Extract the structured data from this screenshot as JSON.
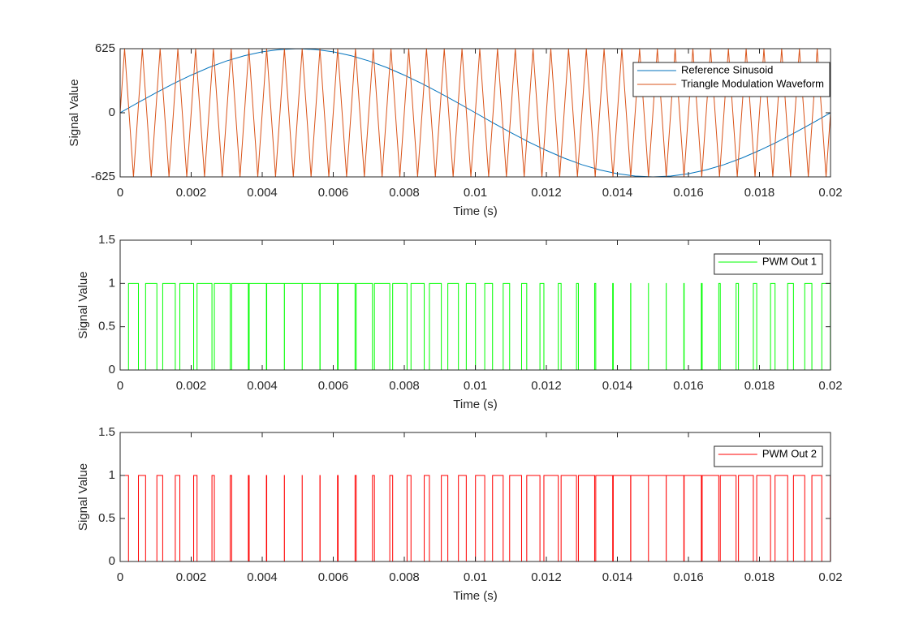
{
  "chart_data": [
    {
      "type": "line",
      "xlabel": "Time (s)",
      "ylabel": "Signal Value",
      "legend": "northeast",
      "grid": false,
      "xlim": [
        0,
        0.02
      ],
      "xticks": [
        0,
        0.002,
        0.004,
        0.006,
        0.008,
        0.01,
        0.012,
        0.014,
        0.016,
        0.018,
        0.02
      ],
      "ylim": [
        -625,
        625
      ],
      "yticks": [
        -625,
        0,
        625
      ],
      "series": [
        {
          "name": "Reference Sinusoid",
          "color": "#0072BD",
          "x": [
            0,
            0.0005,
            0.001,
            0.0015,
            0.002,
            0.0025,
            0.003,
            0.0035,
            0.004,
            0.0045,
            0.005,
            0.0055,
            0.006,
            0.0065,
            0.007,
            0.0075,
            0.008,
            0.0085,
            0.009,
            0.0095,
            0.01,
            0.0105,
            0.011,
            0.0115,
            0.012,
            0.0125,
            0.013,
            0.0135,
            0.014,
            0.0145,
            0.015,
            0.0155,
            0.016,
            0.0165,
            0.017,
            0.0175,
            0.018,
            0.0185,
            0.019,
            0.0195,
            0.02
          ],
          "values": [
            0,
            98,
            193,
            284,
            367,
            442,
            506,
            557,
            594,
            617,
            625,
            617,
            594,
            557,
            506,
            442,
            367,
            284,
            193,
            98,
            0,
            -98,
            -193,
            -284,
            -367,
            -442,
            -506,
            -557,
            -594,
            -617,
            -625,
            -617,
            -594,
            -557,
            -506,
            -442,
            -367,
            -284,
            -193,
            -98,
            0
          ]
        },
        {
          "name": "Triangle Modulation Waveform",
          "color": "#D95319",
          "x": [
            0,
            0.000125,
            0.000375,
            0.000625,
            0.000875,
            0.001125,
            0.001375,
            0.001625,
            0.001875,
            0.002125,
            0.002375,
            0.002625,
            0.002875,
            0.003125,
            0.003375,
            0.003625,
            0.003875,
            0.004125,
            0.004375,
            0.004625,
            0.004875,
            0.005125,
            0.005375,
            0.005625,
            0.005875,
            0.006125,
            0.006375,
            0.006625,
            0.006875,
            0.007125,
            0.007375,
            0.007625,
            0.007875,
            0.008125,
            0.008375,
            0.008625,
            0.008875,
            0.009125,
            0.009375,
            0.009625,
            0.009875,
            0.010125,
            0.010375,
            0.010625,
            0.010875,
            0.011125,
            0.011375,
            0.011625,
            0.011875,
            0.012125,
            0.012375,
            0.012625,
            0.012875,
            0.013125,
            0.013375,
            0.013625,
            0.013875,
            0.014125,
            0.014375,
            0.014625,
            0.014875,
            0.015125,
            0.015375,
            0.015625,
            0.015875,
            0.016125,
            0.016375,
            0.016625,
            0.016875,
            0.017125,
            0.017375,
            0.017625,
            0.017875,
            0.018125,
            0.018375,
            0.018625,
            0.018875,
            0.019125,
            0.019375,
            0.019625,
            0.019875,
            0.02
          ],
          "values": [
            0,
            625,
            -625,
            625,
            -625,
            625,
            -625,
            625,
            -625,
            625,
            -625,
            625,
            -625,
            625,
            -625,
            625,
            -625,
            625,
            -625,
            625,
            -625,
            625,
            -625,
            625,
            -625,
            625,
            -625,
            625,
            -625,
            625,
            -625,
            625,
            -625,
            625,
            -625,
            625,
            -625,
            625,
            -625,
            625,
            -625,
            625,
            -625,
            625,
            -625,
            625,
            -625,
            625,
            -625,
            625,
            -625,
            625,
            -625,
            625,
            -625,
            625,
            -625,
            625,
            -625,
            625,
            -625,
            625,
            -625,
            625,
            -625,
            625,
            -625,
            625,
            -625,
            625,
            -625,
            625,
            -625,
            625,
            -625,
            625,
            -625,
            625,
            -625,
            625,
            -625,
            0
          ]
        }
      ]
    },
    {
      "type": "line",
      "xlabel": "Time (s)",
      "ylabel": "Signal Value",
      "legend": "northeast",
      "grid": false,
      "xlim": [
        0,
        0.02
      ],
      "xticks": [
        0,
        0.002,
        0.004,
        0.006,
        0.008,
        0.01,
        0.012,
        0.014,
        0.016,
        0.018,
        0.02
      ],
      "ylim": [
        0,
        1.5
      ],
      "yticks": [
        0,
        0.5,
        1,
        1.5
      ],
      "series": [
        {
          "name": "PWM Out 1",
          "color": "#00FF00",
          "x": [
            0,
            0.0002353,
            0.0002353,
            0.0005147,
            0.0005147,
            0.0007161,
            0.0007161,
            0.0010339,
            0.0010339,
            0.0011977,
            0.0011977,
            0.0015523,
            0.0015523,
            0.0016806,
            0.0016806,
            0.0020694,
            0.0020694,
            0.0021651,
            0.0021651,
            0.0025849,
            0.0025849,
            0.0026518,
            0.0026518,
            0.0030982,
            0.0030982,
            0.0031409,
            0.0031409,
            0.0036091,
            0.0036091,
            0.0036327,
            0.0036327,
            0.0041173,
            0.0041173,
            0.0041274,
            0.0041274,
            0.0046226,
            0.0046226,
            0.0046251,
            0.0046251,
            0.0051249,
            0.0051249,
            0.0051259,
            0.0051259,
            0.0056241,
            0.0056241,
            0.0056297,
            0.0056297,
            0.0061203,
            0.0061203,
            0.0061365,
            0.0061365,
            0.0066135,
            0.0066135,
            0.0066461,
            0.0066461,
            0.0071039,
            0.0071039,
            0.0071582,
            0.0071582,
            0.0075918,
            0.0075918,
            0.0076726,
            0.0076726,
            0.0080774,
            0.0080774,
            0.0081889,
            0.0081889,
            0.0085611,
            0.0085611,
            0.0087067,
            0.0087067,
            0.0090433,
            0.0090433,
            0.0092256,
            0.0092256,
            0.0095244,
            0.0095244,
            0.0097451,
            0.0097451,
            0.0100049,
            0.0100049,
            0.0102647,
            0.0102647,
            0.0104853,
            0.0104853,
            0.0107839,
            0.0107839,
            0.0109661,
            0.0109661,
            0.0113023,
            0.0113023,
            0.0114477,
            0.0114477,
            0.0118194,
            0.0118194,
            0.0119306,
            0.0119306,
            0.0123348,
            0.0123348,
            0.0124152,
            0.0124152,
            0.0128482,
            0.0128482,
            0.0129018,
            0.0129018,
            0.0133591,
            0.0133591,
            0.0133909,
            0.0133909,
            0.0138673,
            0.0138673,
            0.0138827,
            0.0138827,
            0.0143726,
            0.0143726,
            0.0143774,
            0.0143774,
            0.0148749,
            0.0148749,
            0.0148751,
            0.0148751,
            0.0153741,
            0.0153741,
            0.0153759,
            0.0153759,
            0.0158703,
            0.0158703,
            0.0158797,
            0.0158797,
            0.0163635,
            0.0163635,
            0.0163865,
            0.0163865,
            0.0168539,
            0.0168539,
            0.0168961,
            0.0168961,
            0.0173418,
            0.0173418,
            0.0174082,
            0.0174082,
            0.0178274,
            0.0178274,
            0.0179226,
            0.0179226,
            0.0183111,
            0.0183111,
            0.0184389,
            0.0184389,
            0.0187933,
            0.0187933,
            0.0189567,
            0.0189567,
            0.0192744,
            0.0192744,
            0.0194756,
            0.0194756,
            0.0197549,
            0.0197549,
            0.0199951,
            0.0199951,
            0.02
          ],
          "values": [
            0,
            0,
            1,
            1,
            0,
            0,
            1,
            1,
            0,
            0,
            1,
            1,
            0,
            0,
            1,
            1,
            0,
            0,
            1,
            1,
            0,
            0,
            1,
            1,
            0,
            0,
            1,
            1,
            0,
            0,
            1,
            1,
            0,
            0,
            1,
            1,
            0,
            0,
            1,
            1,
            0,
            0,
            1,
            1,
            0,
            0,
            1,
            1,
            0,
            0,
            1,
            1,
            0,
            0,
            1,
            1,
            0,
            0,
            1,
            1,
            0,
            0,
            1,
            1,
            0,
            0,
            1,
            1,
            0,
            0,
            1,
            1,
            0,
            0,
            1,
            1,
            0,
            0,
            1,
            1,
            0,
            0,
            1,
            1,
            0,
            0,
            1,
            1,
            0,
            0,
            1,
            1,
            0,
            0,
            1,
            1,
            0,
            0,
            1,
            1,
            0,
            0,
            1,
            1,
            0,
            0,
            1,
            1,
            0,
            0,
            1,
            1,
            0,
            0,
            1,
            1,
            0,
            0,
            1,
            1,
            0,
            0,
            1,
            1,
            0,
            0,
            1,
            1,
            0,
            0,
            1,
            1,
            0,
            0,
            1,
            1,
            0,
            0,
            1,
            1,
            0,
            0,
            1,
            1,
            0,
            0,
            1,
            1,
            0,
            0,
            1,
            1,
            0,
            0,
            1,
            1,
            0,
            0,
            1,
            1,
            0,
            0
          ]
        }
      ]
    },
    {
      "type": "line",
      "xlabel": "Time (s)",
      "ylabel": "Signal Value",
      "legend": "northeast",
      "grid": false,
      "xlim": [
        0,
        0.02
      ],
      "xticks": [
        0,
        0.002,
        0.004,
        0.006,
        0.008,
        0.01,
        0.012,
        0.014,
        0.016,
        0.018,
        0.02
      ],
      "ylim": [
        0,
        1.5
      ],
      "yticks": [
        0,
        0.5,
        1,
        1.5
      ],
      "series": [
        {
          "name": "PWM Out 2",
          "color": "#FF0000",
          "x": [
            0,
            0.0002353,
            0.0002353,
            0.0005147,
            0.0005147,
            0.0007161,
            0.0007161,
            0.0010339,
            0.0010339,
            0.0011977,
            0.0011977,
            0.0015523,
            0.0015523,
            0.0016806,
            0.0016806,
            0.0020694,
            0.0020694,
            0.0021651,
            0.0021651,
            0.0025849,
            0.0025849,
            0.0026518,
            0.0026518,
            0.0030982,
            0.0030982,
            0.0031409,
            0.0031409,
            0.0036091,
            0.0036091,
            0.0036327,
            0.0036327,
            0.0041173,
            0.0041173,
            0.0041274,
            0.0041274,
            0.0046226,
            0.0046226,
            0.0046251,
            0.0046251,
            0.0051249,
            0.0051249,
            0.0051259,
            0.0051259,
            0.0056241,
            0.0056241,
            0.0056297,
            0.0056297,
            0.0061203,
            0.0061203,
            0.0061365,
            0.0061365,
            0.0066135,
            0.0066135,
            0.0066461,
            0.0066461,
            0.0071039,
            0.0071039,
            0.0071582,
            0.0071582,
            0.0075918,
            0.0075918,
            0.0076726,
            0.0076726,
            0.0080774,
            0.0080774,
            0.0081889,
            0.0081889,
            0.0085611,
            0.0085611,
            0.0087067,
            0.0087067,
            0.0090433,
            0.0090433,
            0.0092256,
            0.0092256,
            0.0095244,
            0.0095244,
            0.0097451,
            0.0097451,
            0.0100049,
            0.0100049,
            0.0102647,
            0.0102647,
            0.0104853,
            0.0104853,
            0.0107839,
            0.0107839,
            0.0109661,
            0.0109661,
            0.0113023,
            0.0113023,
            0.0114477,
            0.0114477,
            0.0118194,
            0.0118194,
            0.0119306,
            0.0119306,
            0.0123348,
            0.0123348,
            0.0124152,
            0.0124152,
            0.0128482,
            0.0128482,
            0.0129018,
            0.0129018,
            0.0133591,
            0.0133591,
            0.0133909,
            0.0133909,
            0.0138673,
            0.0138673,
            0.0138827,
            0.0138827,
            0.0143726,
            0.0143726,
            0.0143774,
            0.0143774,
            0.0148749,
            0.0148749,
            0.0148751,
            0.0148751,
            0.0153741,
            0.0153741,
            0.0153759,
            0.0153759,
            0.0158703,
            0.0158703,
            0.0158797,
            0.0158797,
            0.0163635,
            0.0163635,
            0.0163865,
            0.0163865,
            0.0168539,
            0.0168539,
            0.0168961,
            0.0168961,
            0.0173418,
            0.0173418,
            0.0174082,
            0.0174082,
            0.0178274,
            0.0178274,
            0.0179226,
            0.0179226,
            0.0183111,
            0.0183111,
            0.0184389,
            0.0184389,
            0.0187933,
            0.0187933,
            0.0189567,
            0.0189567,
            0.0192744,
            0.0192744,
            0.0194756,
            0.0194756,
            0.0197549,
            0.0197549,
            0.0199951,
            0.0199951,
            0.02
          ],
          "values": [
            1,
            1,
            0,
            0,
            1,
            1,
            0,
            0,
            1,
            1,
            0,
            0,
            1,
            1,
            0,
            0,
            1,
            1,
            0,
            0,
            1,
            1,
            0,
            0,
            1,
            1,
            0,
            0,
            1,
            1,
            0,
            0,
            1,
            1,
            0,
            0,
            1,
            1,
            0,
            0,
            1,
            1,
            0,
            0,
            1,
            1,
            0,
            0,
            1,
            1,
            0,
            0,
            1,
            1,
            0,
            0,
            1,
            1,
            0,
            0,
            1,
            1,
            0,
            0,
            1,
            1,
            0,
            0,
            1,
            1,
            0,
            0,
            1,
            1,
            0,
            0,
            1,
            1,
            0,
            0,
            1,
            1,
            0,
            0,
            1,
            1,
            0,
            0,
            1,
            1,
            0,
            0,
            1,
            1,
            0,
            0,
            1,
            1,
            0,
            0,
            1,
            1,
            0,
            0,
            1,
            1,
            0,
            0,
            1,
            1,
            0,
            0,
            1,
            1,
            0,
            0,
            1,
            1,
            0,
            0,
            1,
            1,
            0,
            0,
            1,
            1,
            0,
            0,
            1,
            1,
            0,
            0,
            1,
            1,
            0,
            0,
            1,
            1,
            0,
            0,
            1,
            1,
            0,
            0,
            1,
            1,
            0,
            0,
            1,
            1,
            0,
            0,
            1,
            1,
            0,
            0,
            1,
            1,
            0,
            0,
            1,
            1
          ]
        }
      ]
    }
  ]
}
